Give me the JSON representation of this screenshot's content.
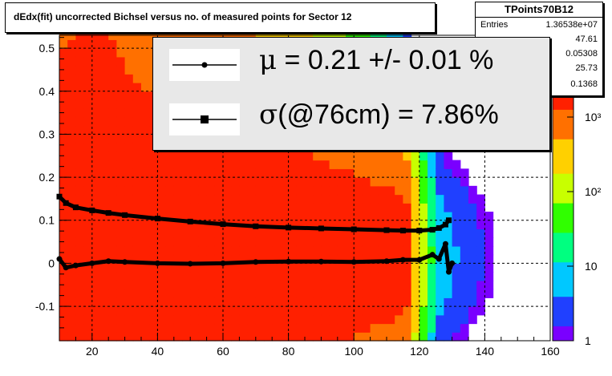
{
  "title": "dEdx(fit) uncorrected Bichsel versus no. of measured points for Sector 12",
  "stats": {
    "name": "TPoints70B12",
    "rows": [
      {
        "label": "Entries",
        "value": "1.36538e+07"
      },
      {
        "label": "",
        "value": "47.61"
      },
      {
        "label": "",
        "value": "0.05308"
      },
      {
        "label": "",
        "value": "25.73"
      },
      {
        "label": "",
        "value": "0.1368"
      }
    ]
  },
  "legend": {
    "mu_symbol": "μ",
    "mu_text": " = 0.21 +/- 0.01 %",
    "sigma_symbol": "σ",
    "sigma_text": "(@76cm) = 7.86%"
  },
  "chart_data": {
    "type": "heatmap",
    "xlim": [
      10,
      160
    ],
    "ylim": [
      -0.18,
      0.53
    ],
    "xticks": [
      20,
      40,
      60,
      80,
      100,
      120,
      140,
      160
    ],
    "yticks": [
      -0.1,
      0,
      0.1,
      0.2,
      0.3,
      0.4,
      0.5
    ],
    "xticklabels": [
      "20",
      "40",
      "60",
      "80",
      "100",
      "120",
      "140",
      "160"
    ],
    "yticklabels": [
      "-0.1",
      "0",
      "0.1",
      "0.2",
      "0.3",
      "0.4",
      "0.5"
    ],
    "grid": true,
    "color_scale": {
      "type": "log",
      "range": [
        1,
        2000
      ],
      "ticks": [
        "1",
        "10",
        "10²",
        "10³"
      ],
      "colors": [
        "#7a00ff",
        "#2040ff",
        "#00c8ff",
        "#00ff80",
        "#30ff00",
        "#c8ff00",
        "#ffd000",
        "#ff7000",
        "#ff2000"
      ]
    },
    "series": [
      {
        "marker": "circle",
        "x": [
          10,
          12,
          15,
          20,
          25,
          30,
          40,
          50,
          60,
          70,
          80,
          90,
          100,
          110,
          115,
          120,
          124,
          126,
          128,
          129,
          130
        ],
        "y": [
          0.01,
          -0.01,
          -0.005,
          0.0,
          0.005,
          0.003,
          0.0,
          -0.001,
          0.0,
          0.003,
          0.004,
          0.004,
          0.003,
          0.005,
          0.008,
          0.008,
          0.02,
          0.01,
          0.045,
          -0.02,
          0.0
        ]
      },
      {
        "marker": "square",
        "x": [
          10,
          12,
          15,
          20,
          25,
          30,
          40,
          50,
          60,
          70,
          80,
          90,
          100,
          110,
          115,
          120,
          124,
          126,
          128,
          129
        ],
        "y": [
          0.155,
          0.14,
          0.13,
          0.123,
          0.117,
          0.112,
          0.104,
          0.097,
          0.091,
          0.086,
          0.083,
          0.081,
          0.079,
          0.077,
          0.076,
          0.076,
          0.078,
          0.082,
          0.09,
          0.1
        ]
      }
    ]
  }
}
